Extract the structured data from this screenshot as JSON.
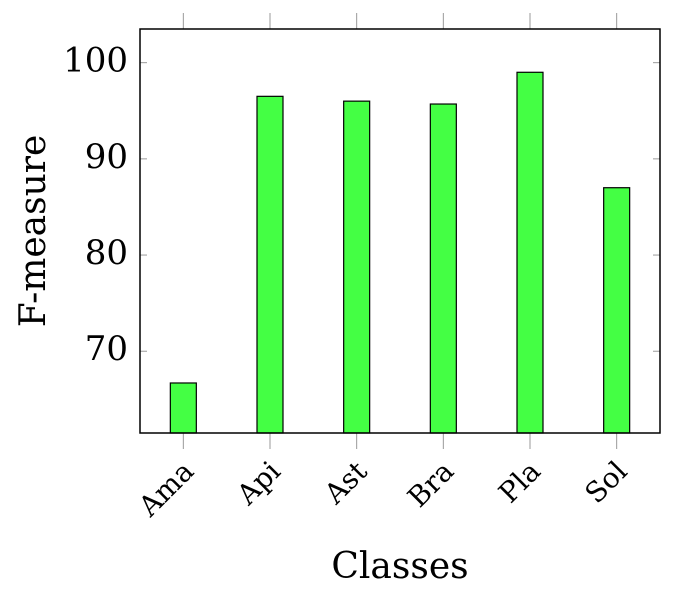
{
  "chart_data": {
    "type": "bar",
    "xlabel": "Classes",
    "ylabel": "F-measure",
    "categories": [
      "Ama",
      "Api",
      "Ast",
      "Bra",
      "Pla",
      "Sol"
    ],
    "values": [
      66.7,
      96.5,
      96.0,
      95.7,
      99.0,
      87.0
    ],
    "color": "#44ff44",
    "ylim": [
      61.5,
      103.5
    ],
    "yticks": [
      70,
      80,
      90,
      100
    ]
  }
}
